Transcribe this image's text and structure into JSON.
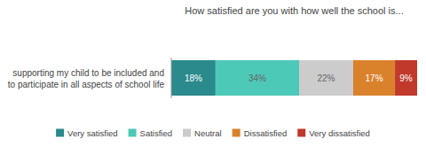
{
  "chart_data": {
    "type": "bar",
    "orientation": "horizontal",
    "stacked": true,
    "data_labels": true,
    "tick_labels": false,
    "legend": "bottom",
    "title": "How satisfied are you with how well the school is...",
    "categories": [
      "supporting my child to be included and\nto participate in all aspects of school life"
    ],
    "xlim": [
      0,
      100
    ],
    "series": [
      {
        "name": "Very satisfied",
        "color": "#2a8a8c",
        "values": [
          18
        ],
        "value_labels": [
          "18%"
        ]
      },
      {
        "name": "Satisfied",
        "color": "#4dc9b8",
        "values": [
          34
        ],
        "value_labels": [
          "34%"
        ]
      },
      {
        "name": "Neutral",
        "color": "#cccccc",
        "values": [
          22
        ],
        "value_labels": [
          "22%"
        ]
      },
      {
        "name": "Dissatisfied",
        "color": "#d9822b",
        "values": [
          17
        ],
        "value_labels": [
          "17%"
        ]
      },
      {
        "name": "Very dissatisfied",
        "color": "#c0392b",
        "values": [
          9
        ],
        "value_labels": [
          "9%"
        ]
      }
    ]
  }
}
